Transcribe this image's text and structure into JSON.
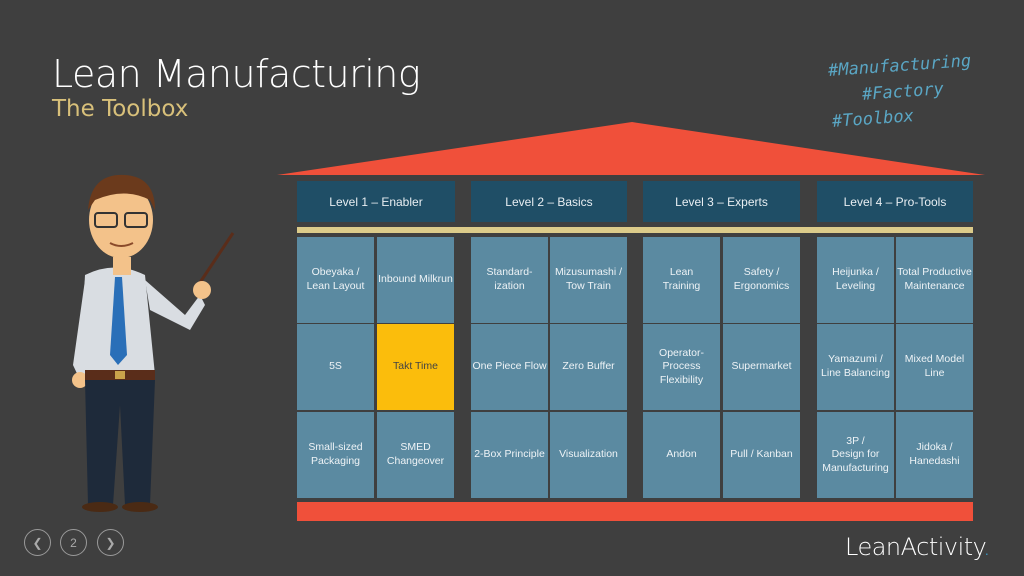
{
  "title": "Lean Manufacturing",
  "subtitle": "The Toolbox",
  "hashtags": [
    "#Manufacturing",
    "#Factory",
    "#Toolbox"
  ],
  "levels": [
    {
      "label": "Level 1 – Enabler",
      "tools": [
        "Obeyaka /\nLean Layout",
        "Inbound Milkrun",
        "5S",
        "Takt Time",
        "Small-sized\nPackaging",
        "SMED\nChangeover"
      ]
    },
    {
      "label": "Level 2 – Basics",
      "tools": [
        "Standard-\nization",
        "Mizusumashi /\nTow Train",
        "One Piece Flow",
        "Zero Buffer",
        "2-Box  Principle",
        "Visualization"
      ]
    },
    {
      "label": "Level 3 – Experts",
      "tools": [
        "Lean\nTraining",
        "Safety /\nErgonomics",
        "Operator-\nProcess\nFlexibility",
        "Supermarket",
        "Andon",
        "Pull / Kanban"
      ]
    },
    {
      "label": "Level 4 – Pro-Tools",
      "tools": [
        "Heijunka /\nLeveling",
        "Total Productive\nMaintenance",
        "Yamazumi /\nLine Balancing",
        "Mixed Model\nLine",
        "3P /\nDesign for\nManufacturing",
        "Jidoka /\nHanedashi"
      ]
    }
  ],
  "highlighted_tool": "Takt Time",
  "nav": {
    "prev_icon": "chevron-left-icon",
    "page": "2",
    "next_icon": "chevron-right-icon"
  },
  "logo": {
    "text": "LeanActivity",
    "dot": "."
  },
  "colors": {
    "roof": "#f0503a",
    "header": "#1f4e66",
    "cell": "#5b8aa1",
    "highlight": "#fbbd0c",
    "beam": "#dccb8a"
  }
}
